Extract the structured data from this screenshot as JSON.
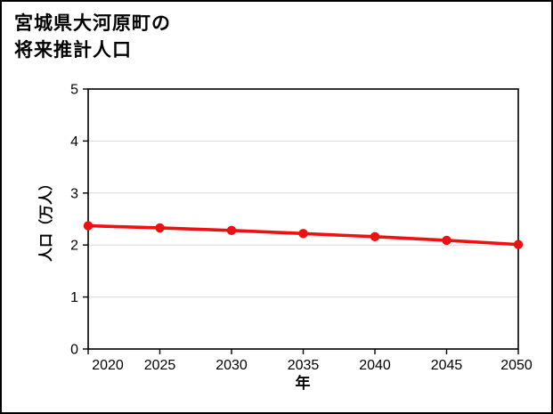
{
  "title": {
    "line1": "宮城県大河原町の",
    "line2": "将来推計人口"
  },
  "chart_data": {
    "type": "line",
    "title": "宮城県大河原町の将来推計人口",
    "categories": [
      "2020",
      "2025",
      "2030",
      "2035",
      "2040",
      "2045",
      "2050"
    ],
    "series": [
      {
        "name": "将来推計人口",
        "values": [
          2.37,
          2.33,
          2.28,
          2.22,
          2.16,
          2.09,
          2.01
        ]
      }
    ],
    "xlabel": "年",
    "ylabel": "人口（万人）",
    "ylim": [
      0,
      5
    ],
    "yticks": [
      0,
      1,
      2,
      3,
      4,
      5
    ],
    "grid": true,
    "legend_position": "none",
    "line_color": "#ee1111",
    "grid_color": "#d9d9d9",
    "axis_color": "#000000",
    "marker": "circle"
  }
}
